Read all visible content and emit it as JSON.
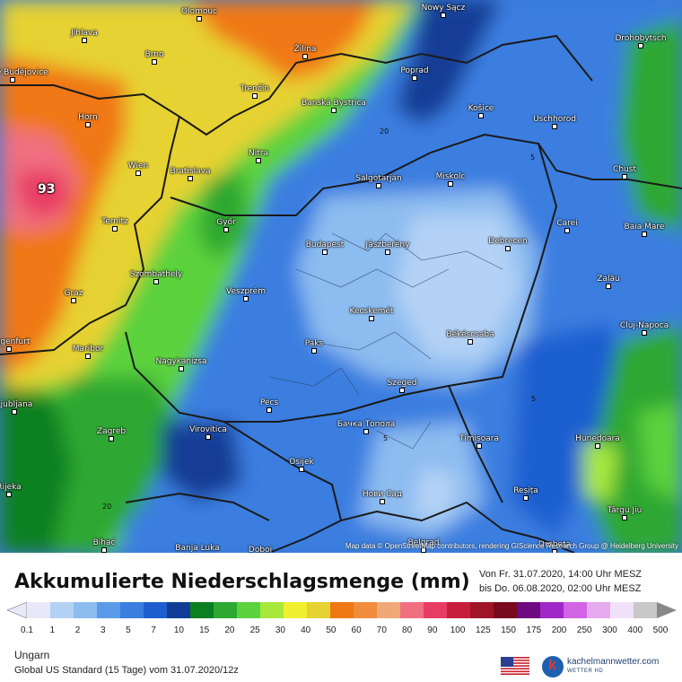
{
  "map": {
    "max_value": "93",
    "contour_labels": [
      "20",
      "5",
      "5",
      "5",
      "20"
    ],
    "attribution": "Map data © OpenStreetMap contributors, rendering GIScience Research Group @ Heidelberg University",
    "cities": [
      {
        "name": "Olomouc"
      },
      {
        "name": "Nowy Sącz"
      },
      {
        "name": "Jihlava"
      },
      {
        "name": "Brno"
      },
      {
        "name": "Žilina"
      },
      {
        "name": "Drohobytsch"
      },
      {
        "name": "Poprad"
      },
      {
        "name": "České Budějovice"
      },
      {
        "name": "Trenčín"
      },
      {
        "name": "Banská Bystrica"
      },
      {
        "name": "Košice"
      },
      {
        "name": "Horn"
      },
      {
        "name": "Uschhorod"
      },
      {
        "name": "Nitra"
      },
      {
        "name": "Wien"
      },
      {
        "name": "Bratislava"
      },
      {
        "name": "Salgótarján"
      },
      {
        "name": "Miskolc"
      },
      {
        "name": "Chust"
      },
      {
        "name": "Ternitz"
      },
      {
        "name": "Győr"
      },
      {
        "name": "Carei"
      },
      {
        "name": "Baia Mare"
      },
      {
        "name": "Budapest"
      },
      {
        "name": "Jászberény"
      },
      {
        "name": "Debrecen"
      },
      {
        "name": "Szombathely"
      },
      {
        "name": "Zalău"
      },
      {
        "name": "Graz"
      },
      {
        "name": "Veszprém"
      },
      {
        "name": "Kecskemét"
      },
      {
        "name": "Cluj-Napoca"
      },
      {
        "name": "Klagenfurt"
      },
      {
        "name": "Paks"
      },
      {
        "name": "Békéscsaba"
      },
      {
        "name": "Maribor"
      },
      {
        "name": "Nagykanizsa"
      },
      {
        "name": "Szeged"
      },
      {
        "name": "Ljubljana"
      },
      {
        "name": "Pécs"
      },
      {
        "name": "Бачка Топола"
      },
      {
        "name": "Zagreb"
      },
      {
        "name": "Virovitica"
      },
      {
        "name": "Timișoara"
      },
      {
        "name": "Hunedoara"
      },
      {
        "name": "Osijek"
      },
      {
        "name": "Rijeka"
      },
      {
        "name": "Нови Сад"
      },
      {
        "name": "Reșița"
      },
      {
        "name": "Târgu Jiu"
      },
      {
        "name": "Bihać"
      },
      {
        "name": "Banja Luka"
      },
      {
        "name": "Doboj"
      },
      {
        "name": "Belgrad"
      },
      {
        "name": "Drobeta"
      }
    ]
  },
  "legend": {
    "title": "Akkumulierte Niederschlagsmenge (mm)",
    "period_from": "Von Fr. 31.07.2020, 14:00 Uhr MESZ",
    "period_to": "bis Do. 06.08.2020, 02:00 Uhr MESZ",
    "ticks": [
      "0.1",
      "1",
      "2",
      "3",
      "5",
      "7",
      "10",
      "15",
      "20",
      "25",
      "30",
      "40",
      "50",
      "60",
      "70",
      "80",
      "90",
      "100",
      "125",
      "150",
      "175",
      "200",
      "250",
      "300",
      "400",
      "500"
    ],
    "colors": [
      "#e8e8f8",
      "#b4d2f5",
      "#8cbcf0",
      "#5a9ae8",
      "#3a7ee0",
      "#1e5fd0",
      "#123c96",
      "#0a8020",
      "#2ea832",
      "#5cd23c",
      "#a8e83c",
      "#f0f030",
      "#e6d232",
      "#f07814",
      "#f08c3c",
      "#f0a878",
      "#f07080",
      "#e83c64",
      "#c81e3c",
      "#a01428",
      "#780a1e",
      "#6e0a82",
      "#a028c8",
      "#d264e6",
      "#e6aaf0",
      "#f0e0f8",
      "#c8c8c8"
    ],
    "region": "Ungarn",
    "model": "Global US Standard (15 Tage) vom 31.07.2020/12z",
    "brand": "kachelmannwetter.com",
    "brand_sub": "WETTER HD"
  }
}
